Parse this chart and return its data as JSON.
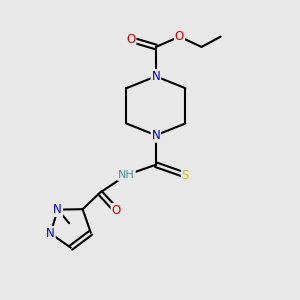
{
  "bg_color": "#e8e8e8",
  "atom_colors": {
    "C": "#000000",
    "N": "#0000cc",
    "O": "#cc0000",
    "S": "#cccc00",
    "H": "#5a9090",
    "NH": "#5a9090"
  },
  "bond_color": "#000000",
  "bond_width": 1.5,
  "figsize": [
    3.0,
    3.0
  ],
  "dpi": 100
}
